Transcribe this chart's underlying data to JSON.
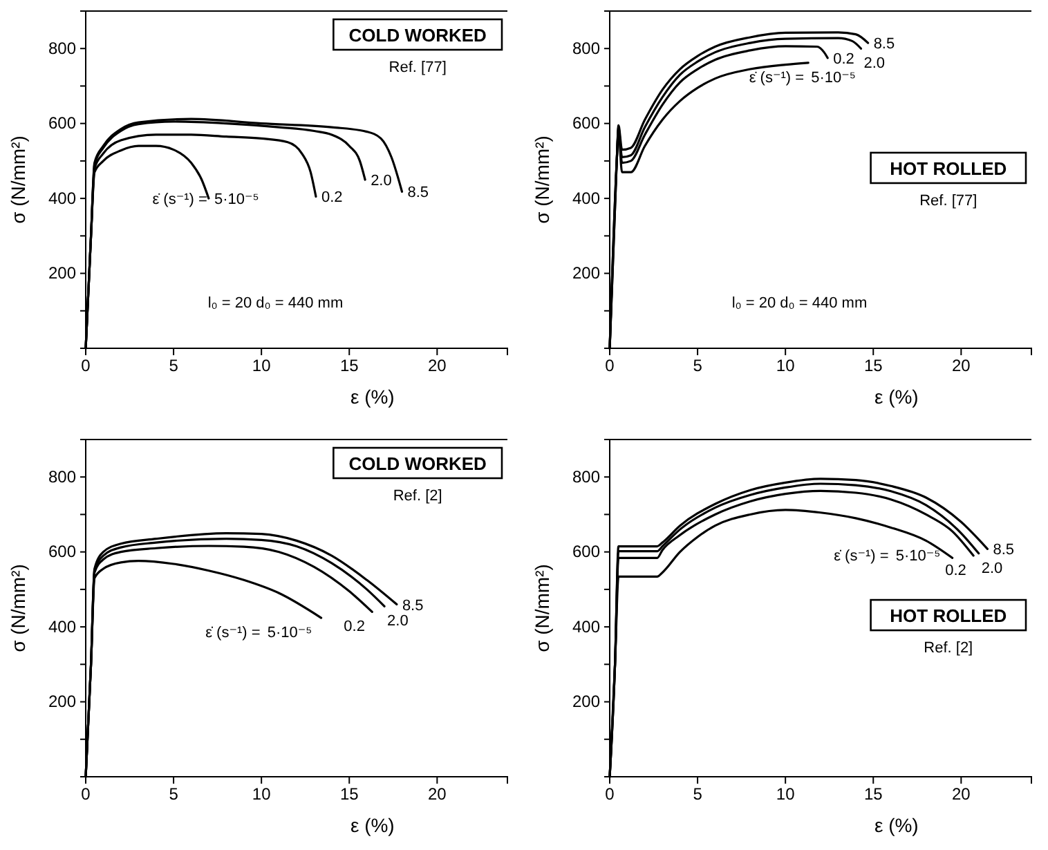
{
  "chart_data": [
    {
      "type": "line",
      "title": "COLD WORKED",
      "xlabel": "ε (%)",
      "ylabel": "σ (N/mm²)",
      "legend": "center",
      "legend_title": "ε̇ (s⁻¹) =",
      "annotations": [
        "Ref. [77]",
        "l₀ = 20 d₀ = 440 mm"
      ],
      "xlim": [
        0,
        24
      ],
      "ylim": [
        0,
        900
      ],
      "xticks": [
        0,
        5,
        10,
        15,
        20
      ],
      "yticks": [
        {
          "value": 100,
          "label": null
        },
        200,
        {
          "value": 300,
          "label": null
        },
        400,
        {
          "value": 500,
          "label": null
        },
        600,
        {
          "value": 700,
          "label": null
        },
        800
      ],
      "series": [
        {
          "name": "5·10⁻⁵",
          "color": "#000000",
          "x": [
            0,
            0.3,
            0.5,
            1,
            2,
            3,
            4,
            5,
            6,
            6.6,
            7
          ],
          "values": [
            0,
            300,
            470,
            500,
            528,
            540,
            540,
            530,
            495,
            450,
            400
          ]
        },
        {
          "name": "0.2",
          "color": "#000000",
          "x": [
            0,
            0.3,
            0.5,
            1,
            2,
            4,
            6,
            8,
            10,
            11.5,
            12.3,
            12.8,
            13.1
          ],
          "values": [
            0,
            300,
            480,
            520,
            555,
            570,
            570,
            565,
            560,
            550,
            520,
            470,
            405
          ]
        },
        {
          "name": "2.0",
          "color": "#000000",
          "x": [
            0,
            0.3,
            0.5,
            1,
            2,
            3,
            5,
            8,
            11,
            13,
            14,
            15,
            15.6,
            15.9
          ],
          "values": [
            0,
            300,
            490,
            535,
            580,
            598,
            605,
            600,
            590,
            580,
            570,
            540,
            500,
            450
          ]
        },
        {
          "name": "8.5",
          "color": "#000000",
          "x": [
            0,
            0.3,
            0.5,
            1,
            2,
            3,
            6,
            10,
            14,
            16,
            16.8,
            17.4,
            18
          ],
          "values": [
            0,
            300,
            495,
            540,
            585,
            603,
            612,
            600,
            590,
            578,
            560,
            510,
            418
          ]
        }
      ]
    },
    {
      "type": "line",
      "title": "HOT ROLLED",
      "xlabel": "ε (%)",
      "ylabel": "σ (N/mm²)",
      "legend": "top right",
      "legend_title": "ε̇ (s⁻¹) =",
      "annotations": [
        "Ref. [77]",
        "l₀ = 20 d₀ = 440 mm"
      ],
      "xlim": [
        0,
        24
      ],
      "ylim": [
        0,
        900
      ],
      "xticks": [
        0,
        5,
        10,
        15,
        20
      ],
      "yticks": [
        {
          "value": 100,
          "label": null
        },
        200,
        {
          "value": 300,
          "label": null
        },
        400,
        {
          "value": 500,
          "label": null
        },
        600,
        {
          "value": 700,
          "label": null
        },
        800
      ],
      "series": [
        {
          "name": "5·10⁻⁵",
          "color": "#000000",
          "x": [
            0,
            0.4,
            0.5,
            0.7,
            1.2,
            2,
            3,
            4,
            5,
            6,
            8,
            10,
            11.3
          ],
          "values": [
            0,
            500,
            580,
            470,
            470,
            540,
            610,
            660,
            695,
            720,
            745,
            757,
            762
          ]
        },
        {
          "name": "0.2",
          "color": "#000000",
          "x": [
            0,
            0.4,
            0.5,
            0.7,
            1.2,
            2,
            3,
            4,
            5,
            6,
            8,
            10,
            11.8,
            12.2,
            12.4
          ],
          "values": [
            0,
            500,
            585,
            495,
            500,
            570,
            650,
            710,
            745,
            770,
            795,
            806,
            805,
            790,
            775
          ]
        },
        {
          "name": "2.0",
          "color": "#000000",
          "x": [
            0,
            0.4,
            0.5,
            0.7,
            1.2,
            2,
            3,
            4,
            5,
            6,
            8,
            10,
            13,
            13.8,
            14.3
          ],
          "values": [
            0,
            500,
            590,
            510,
            515,
            590,
            670,
            730,
            765,
            790,
            815,
            826,
            828,
            820,
            800
          ]
        },
        {
          "name": "8.5",
          "color": "#000000",
          "x": [
            0,
            0.4,
            0.5,
            0.7,
            1.2,
            2,
            3,
            4,
            5,
            6,
            8,
            10,
            13,
            14,
            14.7
          ],
          "values": [
            0,
            500,
            595,
            530,
            535,
            610,
            690,
            745,
            780,
            805,
            830,
            842,
            843,
            838,
            815
          ]
        }
      ]
    },
    {
      "type": "line",
      "title": "COLD WORKED",
      "xlabel": "ε (%)",
      "ylabel": "σ (N/mm²)",
      "legend": "center",
      "legend_title": "ε̇ (s⁻¹) =",
      "annotations": [
        "Ref. [2]"
      ],
      "xlim": [
        0,
        24
      ],
      "ylim": [
        0,
        900
      ],
      "xticks": [
        0,
        5,
        10,
        15,
        20
      ],
      "yticks": [
        {
          "value": 100,
          "label": null
        },
        200,
        {
          "value": 300,
          "label": null
        },
        400,
        {
          "value": 500,
          "label": null
        },
        600,
        {
          "value": 700,
          "label": null
        },
        800
      ],
      "series": [
        {
          "name": "5·10⁻⁵",
          "color": "#000000",
          "x": [
            0,
            0.3,
            0.5,
            1,
            2,
            3,
            5,
            7,
            9,
            11,
            13.4
          ],
          "values": [
            0,
            300,
            530,
            555,
            572,
            576,
            568,
            550,
            525,
            490,
            424
          ]
        },
        {
          "name": "0.2",
          "color": "#000000",
          "x": [
            0,
            0.3,
            0.5,
            1,
            2,
            4,
            7,
            9,
            11,
            13,
            15,
            16.3
          ],
          "values": [
            0,
            300,
            545,
            580,
            600,
            610,
            616,
            614,
            600,
            560,
            495,
            440
          ]
        },
        {
          "name": "2.0",
          "color": "#000000",
          "x": [
            0,
            0.3,
            0.5,
            1,
            2,
            4,
            8,
            10,
            12,
            14,
            16,
            17
          ],
          "values": [
            0,
            300,
            550,
            590,
            612,
            625,
            635,
            632,
            615,
            570,
            500,
            455
          ]
        },
        {
          "name": "8.5",
          "color": "#000000",
          "x": [
            0,
            0.3,
            0.5,
            1,
            2,
            4,
            8,
            10,
            12,
            14,
            16,
            17.7
          ],
          "values": [
            0,
            300,
            555,
            600,
            622,
            635,
            650,
            648,
            630,
            590,
            525,
            460
          ]
        }
      ]
    },
    {
      "type": "line",
      "title": "HOT ROLLED",
      "xlabel": "ε (%)",
      "ylabel": "σ (N/mm²)",
      "legend": "right",
      "legend_title": "ε̇ (s⁻¹) =",
      "annotations": [
        "Ref. [2]"
      ],
      "xlim": [
        0,
        24
      ],
      "ylim": [
        0,
        900
      ],
      "xticks": [
        0,
        5,
        10,
        15,
        20
      ],
      "yticks": [
        {
          "value": 100,
          "label": null
        },
        200,
        {
          "value": 300,
          "label": null
        },
        400,
        {
          "value": 500,
          "label": null
        },
        600,
        {
          "value": 700,
          "label": null
        },
        800
      ],
      "series": [
        {
          "name": "5·10⁻⁵",
          "color": "#000000",
          "x": [
            0,
            0.3,
            0.5,
            2.7,
            3,
            4,
            5,
            6,
            8,
            10,
            12,
            14,
            16,
            18,
            19.5
          ],
          "values": [
            0,
            300,
            534,
            534,
            545,
            600,
            640,
            670,
            700,
            712,
            705,
            690,
            665,
            630,
            584
          ]
        },
        {
          "name": "0.2",
          "color": "#000000",
          "x": [
            0,
            0.3,
            0.5,
            2.7,
            3,
            4,
            6,
            8,
            10,
            12,
            14,
            16,
            18,
            19.5,
            20.7
          ],
          "values": [
            0,
            300,
            584,
            584,
            605,
            645,
            700,
            735,
            755,
            763,
            758,
            740,
            700,
            655,
            590
          ]
        },
        {
          "name": "2.0",
          "color": "#000000",
          "x": [
            0,
            0.3,
            0.5,
            2.7,
            3,
            4,
            6,
            8,
            10,
            12,
            14,
            16,
            18,
            20,
            21
          ],
          "values": [
            0,
            300,
            602,
            602,
            615,
            660,
            718,
            752,
            772,
            782,
            778,
            762,
            725,
            650,
            596
          ]
        },
        {
          "name": "8.5",
          "color": "#000000",
          "x": [
            0,
            0.3,
            0.5,
            2.7,
            3,
            4,
            6,
            8,
            10,
            12,
            14,
            16,
            18,
            20,
            21.5
          ],
          "values": [
            0,
            300,
            615,
            615,
            625,
            670,
            728,
            765,
            785,
            795,
            792,
            776,
            745,
            680,
            608
          ]
        }
      ]
    }
  ]
}
